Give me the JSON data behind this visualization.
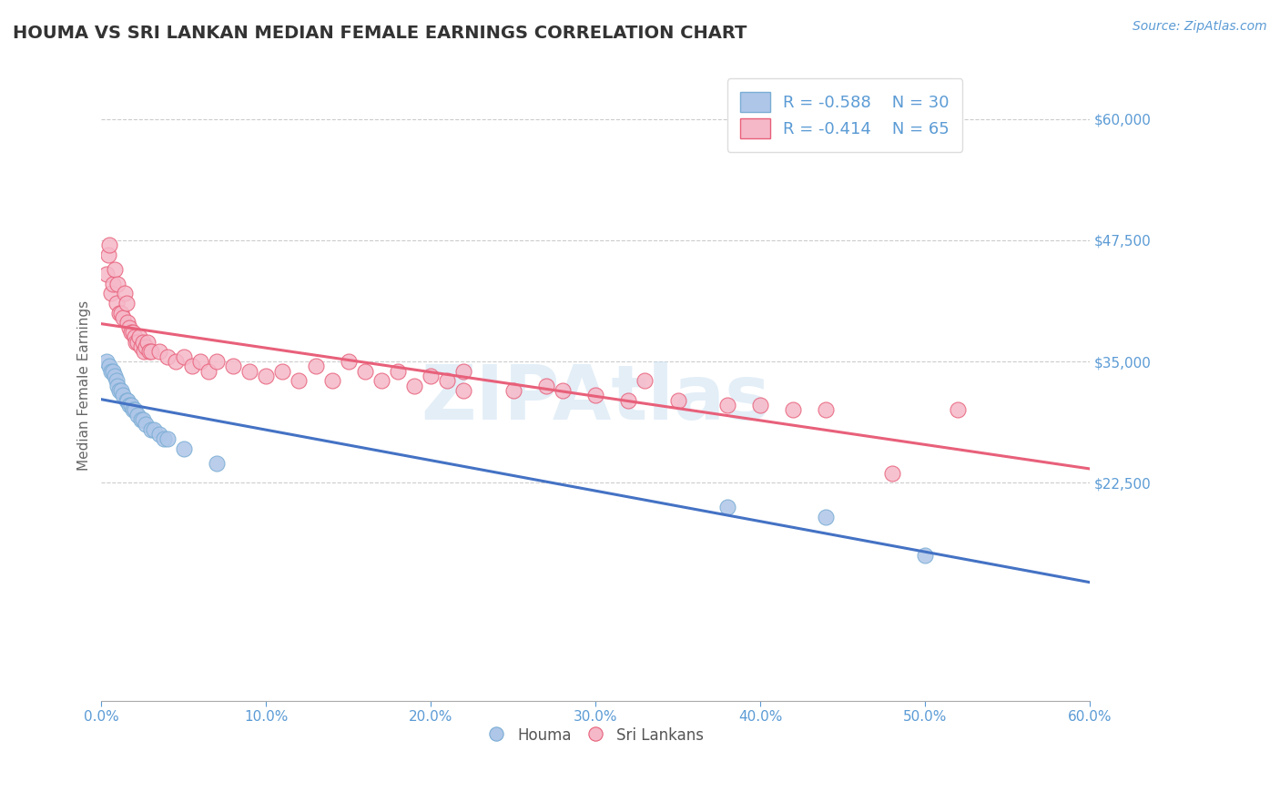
{
  "title": "HOUMA VS SRI LANKAN MEDIAN FEMALE EARNINGS CORRELATION CHART",
  "source_text": "Source: ZipAtlas.com",
  "ylabel": "Median Female Earnings",
  "xlim": [
    0.0,
    0.6
  ],
  "ylim": [
    0,
    65000
  ],
  "yticks": [
    22500,
    35000,
    47500,
    60000
  ],
  "ytick_labels": [
    "$22,500",
    "$35,000",
    "$47,500",
    "$60,000"
  ],
  "xticks": [
    0.0,
    0.1,
    0.2,
    0.3,
    0.4,
    0.5,
    0.6
  ],
  "xtick_labels": [
    "0.0%",
    "10.0%",
    "20.0%",
    "30.0%",
    "40.0%",
    "50.0%",
    "60.0%"
  ],
  "houma_line_color": "#4472c4",
  "houma_scatter_face": "#aec6e8",
  "houma_scatter_edge": "#7aadd4",
  "srilankan_line_color": "#e8607a",
  "srilankan_scatter_face": "#f5b8c8",
  "srilankan_scatter_edge": "#e8607a",
  "houma_R": -0.588,
  "houma_N": 30,
  "srilankan_R": -0.414,
  "srilankan_N": 65,
  "title_color": "#333333",
  "tick_color": "#5b9bd5",
  "grid_color": "#cccccc",
  "watermark": "ZIPAtlas",
  "houma_x": [
    0.003,
    0.005,
    0.006,
    0.007,
    0.008,
    0.009,
    0.01,
    0.011,
    0.012,
    0.013,
    0.015,
    0.016,
    0.017,
    0.018,
    0.019,
    0.02,
    0.022,
    0.024,
    0.025,
    0.027,
    0.03,
    0.032,
    0.035,
    0.038,
    0.04,
    0.05,
    0.07,
    0.38,
    0.44,
    0.5
  ],
  "houma_y": [
    35000,
    34500,
    34000,
    34000,
    33500,
    33000,
    32500,
    32000,
    32000,
    31500,
    31000,
    31000,
    30500,
    30500,
    30000,
    30000,
    29500,
    29000,
    29000,
    28500,
    28000,
    28000,
    27500,
    27000,
    27000,
    26000,
    24500,
    20000,
    19000,
    15000
  ],
  "srilankan_x": [
    0.003,
    0.004,
    0.005,
    0.006,
    0.007,
    0.008,
    0.009,
    0.01,
    0.011,
    0.012,
    0.013,
    0.014,
    0.015,
    0.016,
    0.017,
    0.018,
    0.019,
    0.02,
    0.021,
    0.022,
    0.023,
    0.024,
    0.025,
    0.026,
    0.027,
    0.028,
    0.029,
    0.03,
    0.035,
    0.04,
    0.045,
    0.05,
    0.055,
    0.06,
    0.065,
    0.07,
    0.08,
    0.09,
    0.1,
    0.11,
    0.12,
    0.13,
    0.14,
    0.15,
    0.16,
    0.17,
    0.18,
    0.19,
    0.2,
    0.21,
    0.22,
    0.25,
    0.28,
    0.3,
    0.32,
    0.35,
    0.38,
    0.4,
    0.42,
    0.44,
    0.22,
    0.27,
    0.33,
    0.48,
    0.52
  ],
  "srilankan_y": [
    44000,
    46000,
    47000,
    42000,
    43000,
    44500,
    41000,
    43000,
    40000,
    40000,
    39500,
    42000,
    41000,
    39000,
    38500,
    38000,
    38000,
    37500,
    37000,
    37000,
    37500,
    36500,
    37000,
    36000,
    36500,
    37000,
    36000,
    36000,
    36000,
    35500,
    35000,
    35500,
    34500,
    35000,
    34000,
    35000,
    34500,
    34000,
    33500,
    34000,
    33000,
    34500,
    33000,
    35000,
    34000,
    33000,
    34000,
    32500,
    33500,
    33000,
    32000,
    32000,
    32000,
    31500,
    31000,
    31000,
    30500,
    30500,
    30000,
    30000,
    34000,
    32500,
    33000,
    23500,
    30000
  ]
}
